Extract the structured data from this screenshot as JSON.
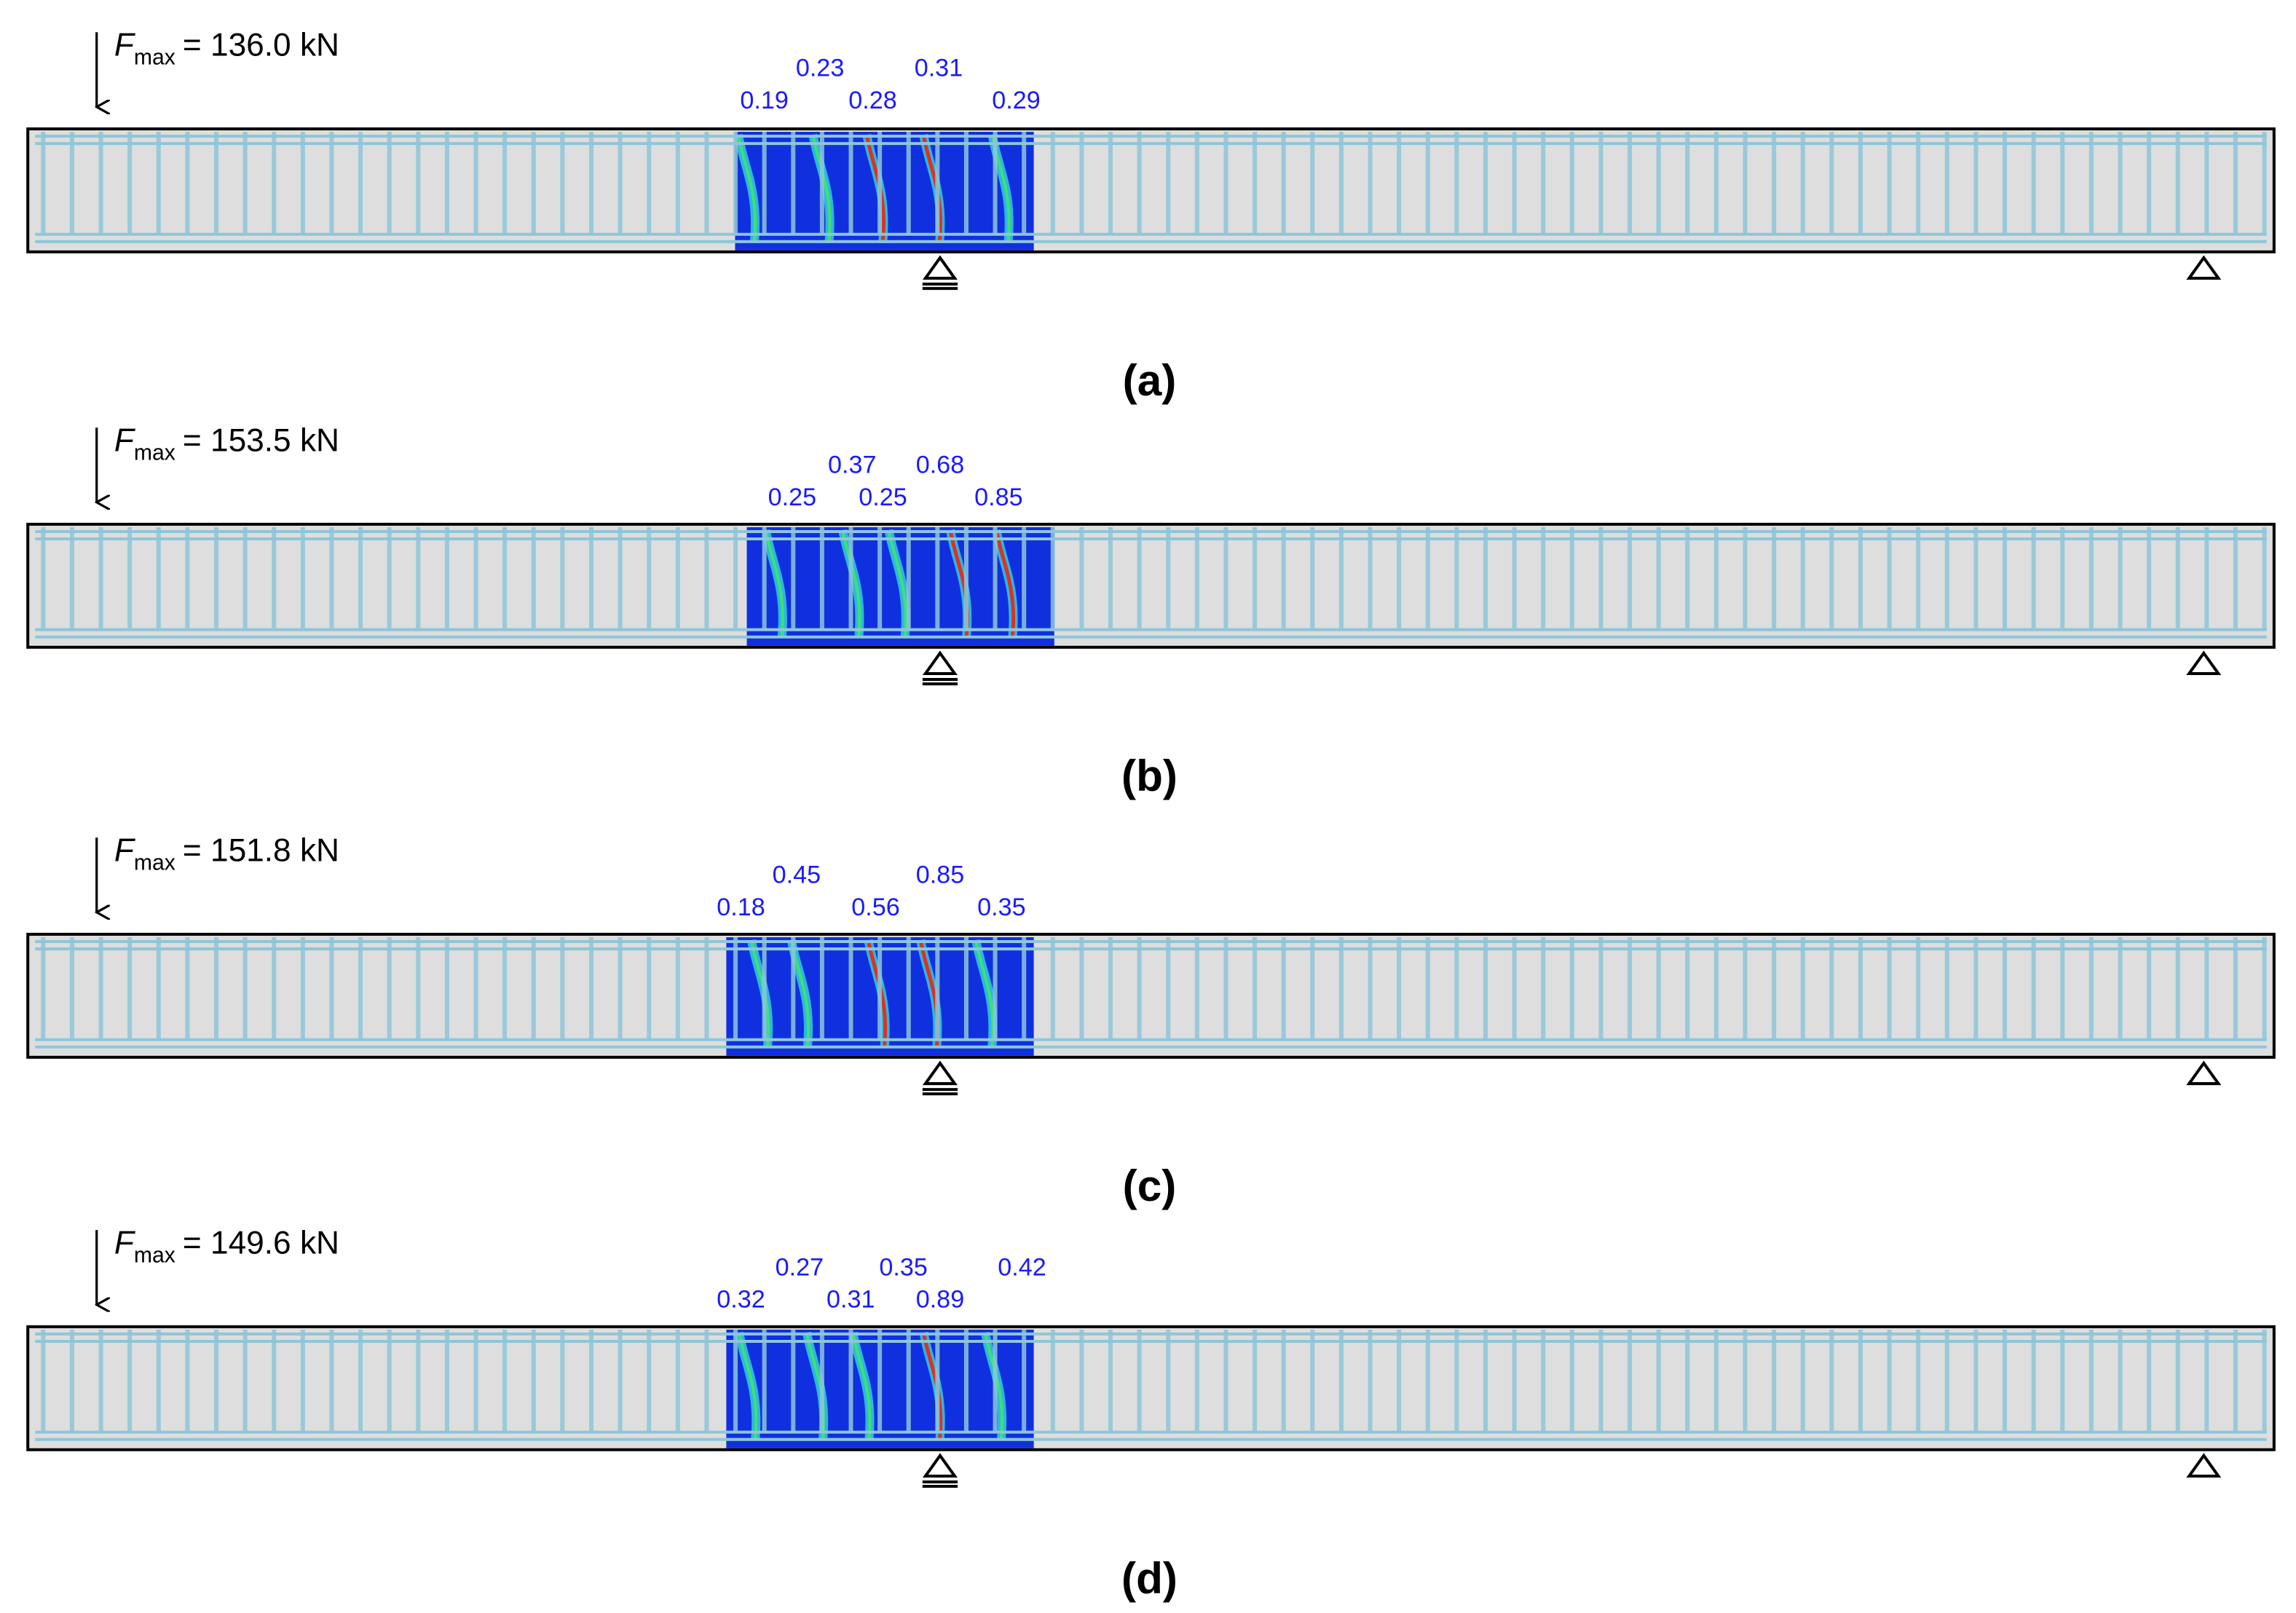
{
  "panels": [
    {
      "label": "(a)",
      "force_symbol": "F",
      "force_subscript": "max",
      "force_value": "= 136.0 kN",
      "crack_widths": [
        "0.23",
        "0.31",
        "0.19",
        "0.28",
        "0.29"
      ]
    },
    {
      "label": "(b)",
      "force_symbol": "F",
      "force_subscript": "max",
      "force_value": "= 153.5 kN",
      "crack_widths": [
        "0.37",
        "0.68",
        "0.25",
        "0.25",
        "0.85"
      ]
    },
    {
      "label": "(c)",
      "force_symbol": "F",
      "force_subscript": "max",
      "force_value": "= 151.8 kN",
      "crack_widths": [
        "0.45",
        "0.85",
        "0.18",
        "0.56",
        "0.35"
      ]
    },
    {
      "label": "(d)",
      "force_symbol": "F",
      "force_subscript": "max",
      "force_value": "= 149.6 kN",
      "crack_widths": [
        "0.27",
        "0.35",
        "0.42",
        "0.32",
        "0.31",
        "0.89"
      ]
    }
  ]
}
